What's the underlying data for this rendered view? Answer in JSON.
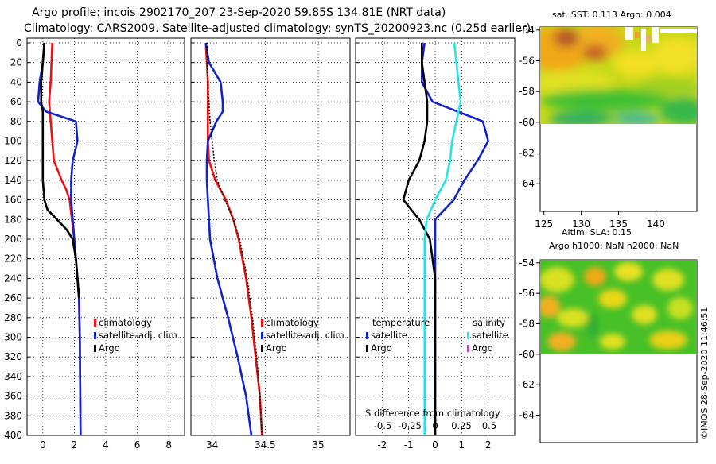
{
  "titles": {
    "line1": "Argo profile: incois 2902170_207 23-Sep-2020 59.85S 134.81E (NRT data)",
    "line2": "Climatology: CARS2009. Satellite-adjusted climatology: synTS_20200923.nc (0.25d earlier)"
  },
  "map_top": {
    "title": "sat. SST: 0.113 Argo: 0.004"
  },
  "map_bottom": {
    "title1": "Altim. SLA: 0.15",
    "title2": "Argo h1000: NaN h2000: NaN"
  },
  "credit": "©IMOS 28-Sep-2020 11:46:51",
  "colors": {
    "climatology": "#ee1111",
    "satellite": "#1122cc",
    "argo": "#000000",
    "sat_salinity": "#22e6e6",
    "argo_salinity": "#ee22ee"
  },
  "chart_data": [
    {
      "type": "line",
      "panel": "temperature",
      "ylabel": "depth",
      "ylim": [
        400,
        0
      ],
      "xlim": [
        -1,
        9
      ],
      "xticks": [
        0,
        2,
        4,
        6,
        8
      ],
      "yticks": [
        0,
        20,
        40,
        60,
        80,
        100,
        120,
        140,
        160,
        180,
        200,
        220,
        240,
        260,
        280,
        300,
        320,
        340,
        360,
        380,
        400
      ],
      "series": [
        {
          "name": "climatology",
          "depth": [
            0,
            40,
            60,
            80,
            100,
            120,
            140,
            150,
            160,
            180,
            200,
            220,
            240,
            260,
            300,
            400
          ],
          "values": [
            0.6,
            0.5,
            0.4,
            0.5,
            0.6,
            0.7,
            1.2,
            1.5,
            1.7,
            1.85,
            2.0,
            2.1,
            2.2,
            2.3,
            2.35,
            2.4
          ]
        },
        {
          "name": "satellite-adj. clim.",
          "depth": [
            0,
            20,
            40,
            60,
            70,
            80,
            100,
            120,
            140,
            160,
            180,
            200,
            220,
            240,
            260,
            300,
            400
          ],
          "values": [
            0.1,
            0.0,
            -0.2,
            -0.3,
            0.2,
            2.1,
            2.2,
            1.9,
            1.8,
            1.8,
            1.9,
            2.0,
            2.1,
            2.2,
            2.3,
            2.35,
            2.4
          ]
        },
        {
          "name": "Argo",
          "depth": [
            0,
            20,
            40,
            60,
            70,
            80,
            100,
            120,
            140,
            160,
            170,
            180,
            190,
            200,
            220,
            240,
            260
          ],
          "values": [
            0.1,
            0.0,
            -0.1,
            -0.1,
            0.0,
            0.0,
            0.0,
            0.0,
            0.0,
            0.1,
            0.3,
            0.9,
            1.5,
            1.9,
            2.1,
            2.2,
            2.3
          ]
        }
      ],
      "legend": [
        "climatology",
        "satellite-adj. clim.",
        "Argo"
      ]
    },
    {
      "type": "line",
      "panel": "salinity",
      "ylim": [
        400,
        0
      ],
      "xlim": [
        33.8,
        35.3
      ],
      "xticks": [
        34,
        34.5,
        35
      ],
      "series": [
        {
          "name": "climatology",
          "depth": [
            0,
            40,
            80,
            100,
            120,
            140,
            160,
            180,
            200,
            240,
            280,
            320,
            360,
            400
          ],
          "values": [
            33.94,
            33.96,
            33.96,
            33.96,
            33.97,
            34.03,
            34.13,
            34.2,
            34.25,
            34.32,
            34.37,
            34.41,
            34.45,
            34.47
          ]
        },
        {
          "name": "satellite-adj. clim.",
          "depth": [
            0,
            20,
            40,
            60,
            70,
            80,
            100,
            120,
            140,
            160,
            180,
            200,
            240,
            280,
            320,
            360,
            400
          ],
          "values": [
            33.94,
            33.97,
            34.08,
            34.1,
            34.1,
            34.04,
            33.96,
            33.95,
            33.95,
            33.96,
            33.97,
            33.98,
            34.05,
            34.15,
            34.24,
            34.32,
            34.37
          ]
        },
        {
          "name": "Argo",
          "depth": [
            0,
            40,
            80,
            100,
            120,
            140,
            160,
            180,
            200,
            240,
            280,
            320,
            360,
            400
          ],
          "values": [
            33.95,
            33.96,
            33.98,
            34.0,
            34.02,
            34.05,
            34.12,
            34.2,
            34.26,
            34.33,
            34.38,
            34.42,
            34.45,
            34.47
          ]
        }
      ],
      "legend": [
        "climatology",
        "satellite-adj. clim.",
        "Argo"
      ]
    },
    {
      "type": "line",
      "panel": "difference",
      "ylim": [
        400,
        0
      ],
      "xlim": [
        -3,
        3
      ],
      "xticks_top": [
        -2,
        -1,
        0,
        1,
        2
      ],
      "xticks_bottom": [
        -0.5,
        -0.25,
        0,
        0.25,
        0.5
      ],
      "xlabel": "S difference from climatology",
      "series": [
        {
          "name": "temperature satellite",
          "depth": [
            0,
            20,
            40,
            60,
            80,
            100,
            120,
            140,
            160,
            180,
            200,
            240,
            300,
            400
          ],
          "values": [
            -0.4,
            -0.5,
            -0.5,
            -0.1,
            1.8,
            2.0,
            1.6,
            1.1,
            0.7,
            0.0,
            0.0,
            0.0,
            0.0,
            0.0
          ]
        },
        {
          "name": "temperature Argo",
          "depth": [
            0,
            20,
            40,
            60,
            80,
            100,
            120,
            140,
            160,
            180,
            200,
            240,
            300,
            400
          ],
          "values": [
            -0.5,
            -0.5,
            -0.4,
            -0.3,
            -0.3,
            -0.4,
            -0.6,
            -1.0,
            -1.2,
            -0.6,
            -0.2,
            0.0,
            0.0,
            0.0
          ]
        },
        {
          "name": "salinity satellite",
          "depth": [
            0,
            20,
            40,
            60,
            80,
            100,
            120,
            140,
            160,
            180,
            200,
            300,
            400
          ],
          "values": [
            0.18,
            0.2,
            0.22,
            0.24,
            0.2,
            0.16,
            0.14,
            0.1,
            0.0,
            -0.08,
            -0.1,
            -0.1,
            -0.1
          ]
        }
      ],
      "legend_temperature": {
        "title": "temperature",
        "items": [
          "satellite",
          "Argo"
        ]
      },
      "legend_salinity": {
        "title": "salinity",
        "items": [
          "satellite",
          "Argo"
        ]
      }
    },
    {
      "type": "heatmap",
      "panel": "sst-map",
      "xlim": [
        124.5,
        145.5
      ],
      "ylim": [
        -65.8,
        -53.8
      ],
      "xticks": [
        125,
        130,
        135,
        140
      ],
      "yticks": [
        -54,
        -56,
        -58,
        -60,
        -62,
        -64
      ]
    },
    {
      "type": "heatmap",
      "panel": "sla-map",
      "ylim": [
        -65.8,
        -53.8
      ],
      "yticks": [
        -54,
        -56,
        -58,
        -60,
        -62,
        -64
      ]
    }
  ]
}
